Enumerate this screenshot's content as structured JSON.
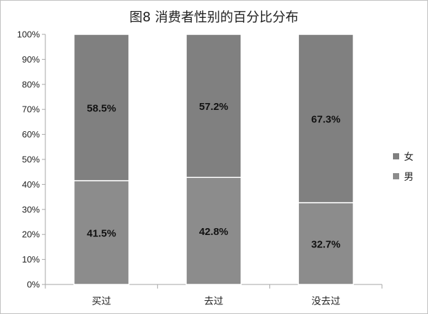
{
  "chart_data": {
    "type": "bar",
    "stacked": true,
    "title": "图8  消费者性别的百分比分布",
    "categories": [
      "买过",
      "去过",
      "没去过"
    ],
    "series": [
      {
        "name": "男",
        "values": [
          41.5,
          42.8,
          32.7
        ],
        "labels": [
          "41.5%",
          "42.8%",
          "32.7%"
        ],
        "color": "#8c8c8c"
      },
      {
        "name": "女",
        "values": [
          58.5,
          57.2,
          67.3
        ],
        "labels": [
          "58.5%",
          "57.2%",
          "67.3%"
        ],
        "color": "#808080"
      }
    ],
    "ylim": [
      0,
      100
    ],
    "yticks": [
      "0%",
      "10%",
      "20%",
      "30%",
      "40%",
      "50%",
      "60%",
      "70%",
      "80%",
      "90%",
      "100%"
    ],
    "legend_order": [
      "女",
      "男"
    ],
    "legend_position": "right",
    "grid": false
  }
}
